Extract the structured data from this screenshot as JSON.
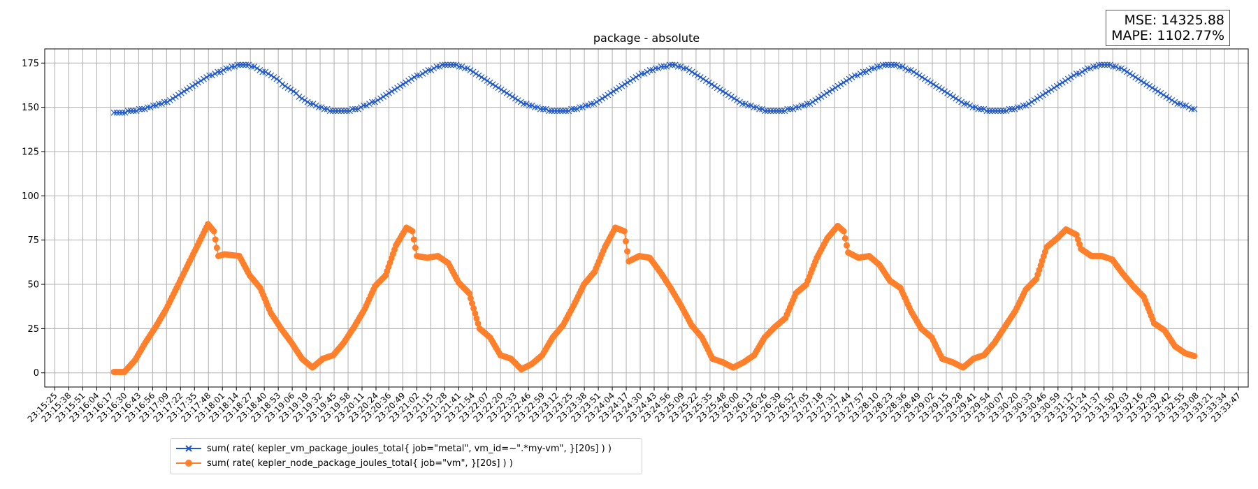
{
  "metrics": {
    "mse": "MSE: 14325.88",
    "mape": "MAPE: 1102.77%"
  },
  "chart_data": {
    "type": "line",
    "title": "package - absolute",
    "xlabel": "",
    "ylabel": "",
    "ylim": [
      -8,
      183
    ],
    "yticks": [
      0,
      25,
      50,
      75,
      100,
      125,
      150,
      175
    ],
    "grid": true,
    "legend_position": "bottom-left",
    "colors": {
      "series1": "#1f57c6",
      "series2": "#ff7f2a",
      "grid": "#b0b0b0"
    },
    "xticks": [
      "23:15:25",
      "23:15:38",
      "23:15:51",
      "23:16:04",
      "23:16:17",
      "23:16:30",
      "23:16:43",
      "23:16:56",
      "23:17:09",
      "23:17:22",
      "23:17:35",
      "23:17:48",
      "23:18:01",
      "23:18:14",
      "23:18:27",
      "23:18:40",
      "23:18:53",
      "23:19:06",
      "23:19:19",
      "23:19:32",
      "23:19:45",
      "23:19:58",
      "23:20:11",
      "23:20:24",
      "23:20:36",
      "23:20:49",
      "23:21:02",
      "23:21:15",
      "23:21:28",
      "23:21:41",
      "23:21:54",
      "23:22:07",
      "23:22:20",
      "23:22:33",
      "23:22:46",
      "23:22:59",
      "23:23:12",
      "23:23:25",
      "23:23:38",
      "23:23:51",
      "23:24:04",
      "23:24:17",
      "23:24:30",
      "23:24:43",
      "23:24:56",
      "23:25:09",
      "23:25:22",
      "23:25:35",
      "23:25:48",
      "23:26:00",
      "23:26:13",
      "23:26:26",
      "23:26:39",
      "23:26:52",
      "23:27:05",
      "23:27:18",
      "23:27:31",
      "23:27:44",
      "23:27:57",
      "23:28:10",
      "23:28:23",
      "23:28:36",
      "23:28:49",
      "23:29:02",
      "23:29:15",
      "23:29:28",
      "23:29:41",
      "23:29:54",
      "23:30:07",
      "23:30:20",
      "23:30:33",
      "23:30:46",
      "23:30:59",
      "23:31:12",
      "23:31:24",
      "23:31:37",
      "23:31:50",
      "23:32:03",
      "23:32:16",
      "23:32:29",
      "23:32:42",
      "23:32:55",
      "23:33:08",
      "23:33:21",
      "23:33:34",
      "23:33:47"
    ],
    "series": [
      {
        "name": "sum( rate( kepler_vm_package_joules_total{ job=\"metal\", vm_id=~\".*my-vm\", }[20s] ) )",
        "marker": "x",
        "x_range": [
          "23:16:20",
          "23:33:06"
        ],
        "values": [
          147,
          147,
          147,
          147,
          147,
          148,
          148,
          148,
          148,
          149,
          149,
          149,
          150,
          150,
          151,
          151,
          152,
          152,
          153,
          153,
          154,
          155,
          156,
          157,
          158,
          159,
          160,
          161,
          162,
          163,
          164,
          165,
          166,
          167,
          168,
          168,
          169,
          170,
          170,
          171,
          172,
          172,
          173,
          173,
          174,
          174,
          174,
          174,
          174,
          173,
          173,
          172,
          171,
          170,
          170,
          169,
          168,
          167,
          166,
          165,
          163,
          162,
          161,
          160,
          159,
          158,
          156,
          155,
          154,
          153,
          152,
          152,
          151,
          150,
          150,
          149,
          149,
          148,
          148,
          148,
          148,
          148,
          148,
          148,
          148,
          149,
          149,
          149,
          150,
          151,
          151,
          152,
          153,
          153,
          154,
          155,
          156,
          157,
          158,
          159,
          160,
          161,
          162,
          163,
          164,
          165,
          166,
          167,
          168,
          168,
          169,
          170,
          171,
          171,
          172,
          173,
          173,
          174,
          174,
          174,
          174,
          174,
          174,
          173,
          173,
          172,
          172,
          171,
          170,
          169,
          168,
          167,
          166,
          165,
          164,
          163,
          162,
          161,
          160,
          159,
          158,
          157,
          156,
          155,
          154,
          153,
          152,
          152,
          151,
          151,
          150,
          150,
          149,
          149,
          149,
          148,
          148,
          148,
          148,
          148,
          148,
          148,
          148,
          149,
          149,
          149,
          150,
          150,
          151,
          151,
          152,
          152,
          153,
          154,
          155,
          156,
          157,
          158,
          159,
          160,
          161,
          162,
          163,
          164,
          165,
          166,
          167,
          168,
          169,
          169,
          170,
          171,
          171,
          172,
          172,
          173,
          173,
          173,
          174,
          174,
          174,
          173,
          173,
          172,
          172,
          171,
          170,
          169,
          168,
          167,
          166,
          165,
          164,
          163,
          162,
          161,
          160,
          159,
          158,
          157,
          156,
          155,
          154,
          153,
          152,
          152,
          151,
          151,
          150,
          150,
          149,
          149,
          148,
          148,
          148,
          148,
          148,
          148,
          148,
          148,
          149,
          149,
          149,
          150,
          150,
          151,
          151,
          152,
          152,
          153,
          154,
          155,
          156,
          157,
          158,
          159,
          160,
          161,
          162,
          163,
          164,
          165,
          166,
          167,
          168,
          168,
          169,
          170,
          170,
          171,
          172,
          172,
          173,
          173,
          174,
          174,
          174,
          174,
          174,
          174,
          173,
          173,
          172,
          171,
          171,
          170,
          169,
          168,
          167,
          166,
          165,
          164,
          163,
          162,
          161,
          160,
          159,
          158,
          157,
          156,
          155,
          154,
          153,
          152,
          152,
          151,
          150,
          150,
          149,
          149,
          149,
          148,
          148,
          148,
          148,
          148,
          148,
          148,
          148,
          149,
          149,
          149,
          150,
          150,
          151,
          151,
          152,
          153,
          154,
          155,
          156,
          157,
          158,
          159,
          160,
          161,
          162,
          163,
          164,
          165,
          166,
          167,
          168,
          169,
          169,
          170,
          171,
          172,
          172,
          173,
          173,
          174,
          174,
          174,
          174,
          174,
          173,
          173,
          172,
          172,
          171,
          170,
          169,
          168,
          167,
          166,
          165,
          164,
          163,
          162,
          161,
          160,
          159,
          158,
          157,
          156,
          155,
          154,
          153,
          152,
          152,
          151,
          151,
          150,
          149,
          149
        ]
      },
      {
        "name": "sum( rate( kepler_node_package_joules_total{ job=\"vm\", }[20s] ) )",
        "marker": "o",
        "x_range": [
          "23:16:20",
          "23:33:06"
        ],
        "keypoints": [
          [
            0,
            0.5
          ],
          [
            7,
            0.5
          ],
          [
            14,
            7
          ],
          [
            21,
            17
          ],
          [
            28,
            26
          ],
          [
            35,
            36
          ],
          [
            42,
            48
          ],
          [
            49,
            60
          ],
          [
            56,
            72
          ],
          [
            63,
            84
          ],
          [
            67,
            80
          ],
          [
            70,
            66
          ],
          [
            74,
            67
          ],
          [
            84,
            66
          ],
          [
            91,
            55
          ],
          [
            98,
            48
          ],
          [
            105,
            34
          ],
          [
            112,
            25
          ],
          [
            119,
            17
          ],
          [
            126,
            8
          ],
          [
            133,
            3
          ],
          [
            140,
            8
          ],
          [
            147,
            10
          ],
          [
            154,
            17
          ],
          [
            161,
            26
          ],
          [
            168,
            36
          ],
          [
            175,
            49
          ],
          [
            182,
            55
          ],
          [
            189,
            72
          ],
          [
            196,
            82
          ],
          [
            200,
            80
          ],
          [
            203,
            66
          ],
          [
            210,
            65
          ],
          [
            217,
            66
          ],
          [
            224,
            62
          ],
          [
            231,
            51
          ],
          [
            238,
            45
          ],
          [
            245,
            25
          ],
          [
            252,
            20
          ],
          [
            259,
            10
          ],
          [
            266,
            8
          ],
          [
            273,
            2
          ],
          [
            280,
            5
          ],
          [
            287,
            10
          ],
          [
            294,
            20
          ],
          [
            301,
            27
          ],
          [
            308,
            38
          ],
          [
            315,
            50
          ],
          [
            322,
            57
          ],
          [
            329,
            71
          ],
          [
            336,
            82
          ],
          [
            342,
            80
          ],
          [
            345,
            63
          ],
          [
            352,
            66
          ],
          [
            359,
            65
          ],
          [
            366,
            57
          ],
          [
            373,
            48
          ],
          [
            380,
            38
          ],
          [
            387,
            27
          ],
          [
            394,
            20
          ],
          [
            401,
            8
          ],
          [
            408,
            6
          ],
          [
            415,
            3
          ],
          [
            422,
            6
          ],
          [
            429,
            10
          ],
          [
            436,
            20
          ],
          [
            443,
            26
          ],
          [
            450,
            31
          ],
          [
            457,
            45
          ],
          [
            464,
            50
          ],
          [
            471,
            65
          ],
          [
            478,
            76
          ],
          [
            485,
            83
          ],
          [
            489,
            80
          ],
          [
            492,
            68
          ],
          [
            499,
            65
          ],
          [
            506,
            66
          ],
          [
            513,
            61
          ],
          [
            520,
            52
          ],
          [
            527,
            48
          ],
          [
            534,
            35
          ],
          [
            541,
            25
          ],
          [
            548,
            20
          ],
          [
            555,
            8
          ],
          [
            562,
            6
          ],
          [
            569,
            3
          ],
          [
            576,
            8
          ],
          [
            583,
            10
          ],
          [
            590,
            17
          ],
          [
            597,
            26
          ],
          [
            604,
            35
          ],
          [
            611,
            47
          ],
          [
            618,
            53
          ],
          [
            625,
            71
          ],
          [
            632,
            76
          ],
          [
            638,
            81
          ],
          [
            645,
            78
          ],
          [
            648,
            70
          ],
          [
            655,
            66
          ],
          [
            662,
            66
          ],
          [
            669,
            64
          ],
          [
            676,
            56
          ],
          [
            683,
            49
          ],
          [
            690,
            43
          ],
          [
            697,
            28
          ],
          [
            704,
            24
          ],
          [
            711,
            15
          ],
          [
            718,
            11
          ],
          [
            724,
            9.5
          ]
        ]
      }
    ]
  }
}
